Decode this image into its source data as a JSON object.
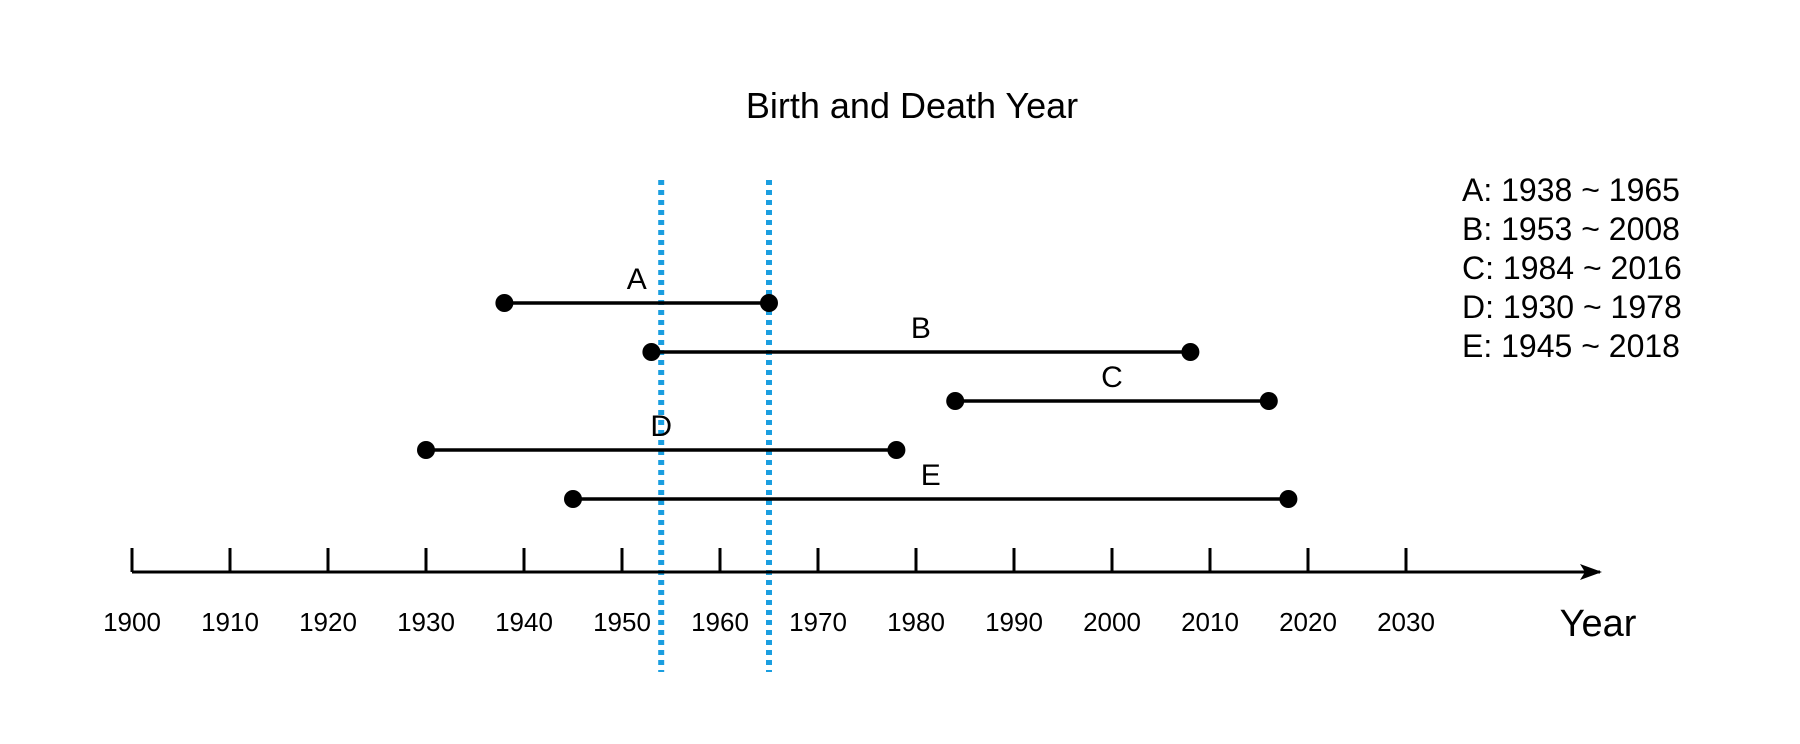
{
  "chart_data": {
    "type": "timeline",
    "title": "Birth and Death Year",
    "xlabel": "Year",
    "x_ticks": [
      1900,
      1910,
      1920,
      1930,
      1940,
      1950,
      1960,
      1970,
      1980,
      1990,
      2000,
      2010,
      2020,
      2030
    ],
    "xlim": [
      1900,
      2030
    ],
    "spans": [
      {
        "label": "A",
        "start": 1938,
        "end": 1965
      },
      {
        "label": "B",
        "start": 1953,
        "end": 2008
      },
      {
        "label": "C",
        "start": 1984,
        "end": 2016
      },
      {
        "label": "D",
        "start": 1930,
        "end": 1978
      },
      {
        "label": "E",
        "start": 1945,
        "end": 2018
      }
    ],
    "reference_lines": [
      1954,
      1965
    ],
    "legend": [
      "A: 1938 ~ 1965",
      "B: 1953 ~ 2008",
      "C: 1984 ~ 2016",
      "D: 1930 ~ 1978",
      "E: 1945 ~ 2018"
    ],
    "legend_position": "top-right",
    "colors": {
      "span": "#000000",
      "reference_line": "#1a9ee0",
      "axis": "#000000"
    }
  }
}
